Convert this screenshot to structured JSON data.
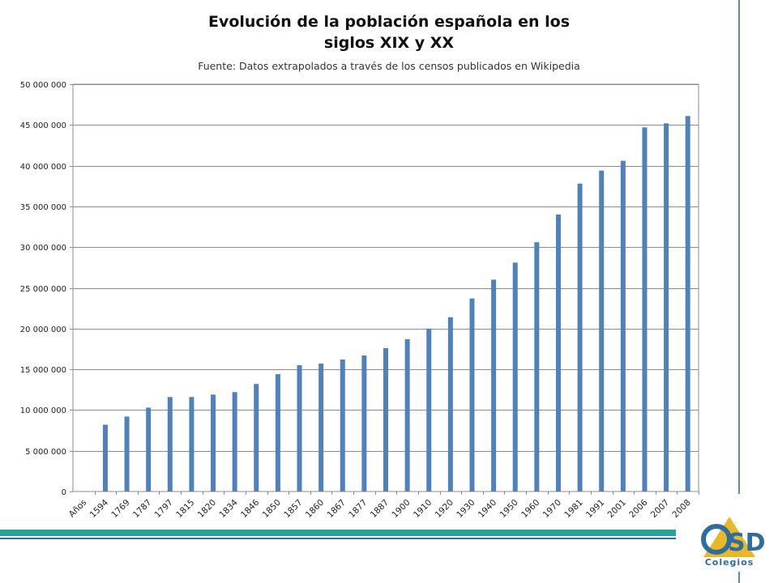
{
  "title_line1": "Evolución de la población española en los",
  "title_line2": "siglos XIX y XX",
  "subtitle": "Fuente: Datos extrapolados a través de los censos publicados en Wikipedia",
  "logo_text": "Colegios",
  "colors": {
    "bar": "#4f81bd",
    "grid": "#8c8c8c",
    "stripe_teal": "#2aa19b",
    "stripe_blue": "#2d6e9e",
    "logo_gold": "#e8b82a"
  },
  "chart_data": {
    "type": "bar",
    "title": "Evolución de la población española en los siglos XIX y XX",
    "subtitle": "Fuente: Datos extrapolados a través de los censos publicados en Wikipedia",
    "categories": [
      "Años",
      "1594",
      "1769",
      "1787",
      "1797",
      "1815",
      "1820",
      "1834",
      "1846",
      "1850",
      "1857",
      "1860",
      "1867",
      "1877",
      "1887",
      "1900",
      "1910",
      "1920",
      "1930",
      "1940",
      "1950",
      "1960",
      "1970",
      "1981",
      "1991",
      "2001",
      "2006",
      "2007",
      "2008"
    ],
    "values": [
      null,
      8200000,
      9200000,
      10300000,
      11600000,
      11600000,
      11900000,
      12200000,
      13200000,
      14400000,
      15500000,
      15700000,
      16200000,
      16700000,
      17600000,
      18700000,
      20000000,
      21400000,
      23700000,
      26000000,
      28100000,
      30600000,
      34000000,
      37800000,
      39400000,
      40600000,
      44700000,
      45200000,
      46100000
    ],
    "y_ticks": [
      "0",
      "5 000 000",
      "10 000 000",
      "15 000 000",
      "20 000 000",
      "25 000 000",
      "30 000 000",
      "35 000 000",
      "40 000 000",
      "45 000 000",
      "50 000 000"
    ],
    "ylim": [
      0,
      50000000
    ],
    "grid": true,
    "legend": "none",
    "xlabel": "",
    "ylabel": ""
  }
}
